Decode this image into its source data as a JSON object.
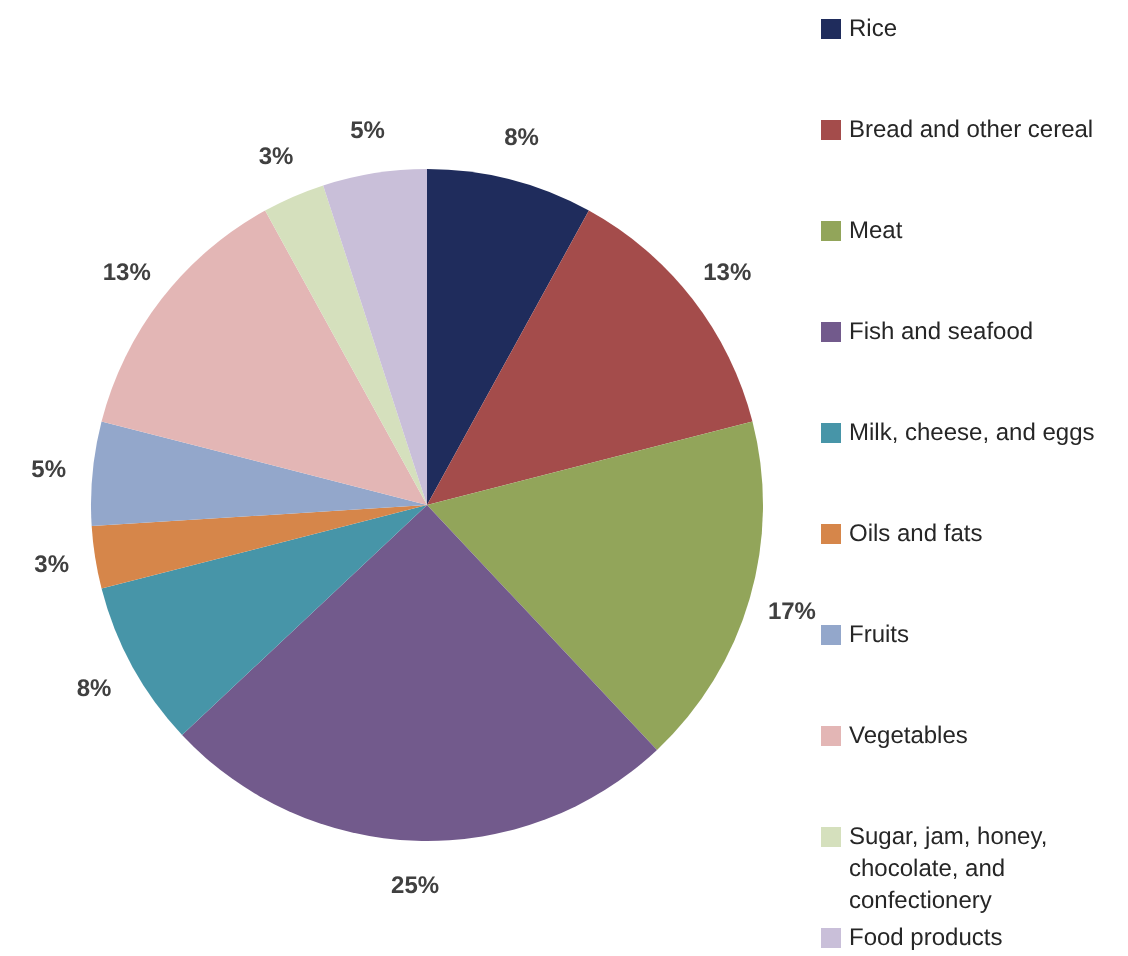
{
  "chart_data": {
    "type": "pie",
    "categories": [
      "Rice",
      "Bread and other cereal",
      "Meat",
      "Fish and seafood",
      "Milk, cheese, and eggs",
      "Oils and fats",
      "Fruits",
      "Vegetables",
      "Sugar, jam, honey, chocolate, and confectionery",
      "Food products"
    ],
    "values": [
      8,
      13,
      17,
      25,
      8,
      3,
      5,
      13,
      3,
      5
    ],
    "value_labels": [
      "8%",
      "13%",
      "17%",
      "25%",
      "8%",
      "3%",
      "5%",
      "13%",
      "3%",
      "5%"
    ],
    "colors": [
      "#1f2c5c",
      "#a44c4b",
      "#92a55a",
      "#725a8c",
      "#4795a8",
      "#d6864a",
      "#93a7cb",
      "#e3b6b5",
      "#d5e0bd",
      "#c9bfd9"
    ],
    "legend": "right"
  }
}
